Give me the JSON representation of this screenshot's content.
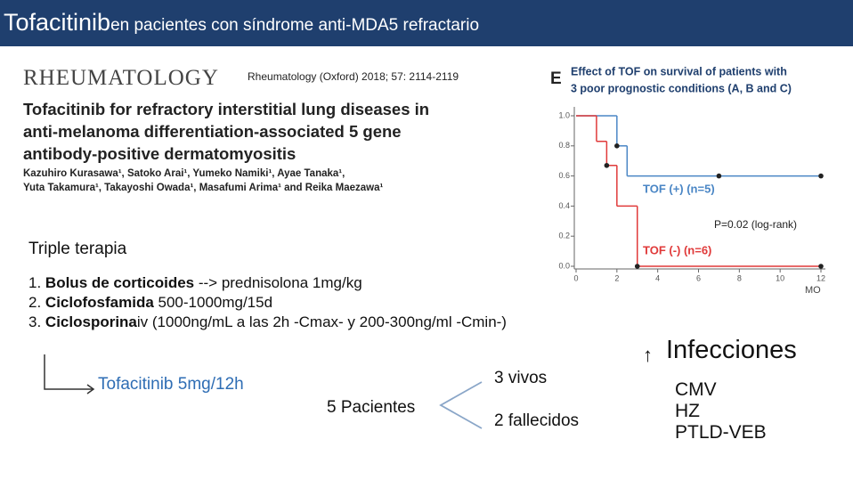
{
  "header": {
    "title_main": "Tofacitinib",
    "title_rest": "en pacientes con síndrome anti-MDA5 refractario"
  },
  "article": {
    "journal": "RHEUMATOLOGY",
    "citation": "Rheumatology (Oxford) 2018; 57: 2114-2119",
    "title_lines": [
      "Tofacitinib for refractory interstitial lung diseases in",
      "anti-melanoma differentiation-associated 5 gene",
      "antibody-positive dermatomyositis"
    ],
    "authors_lines": [
      "Kazuhiro Kurasawa¹, Satoko Arai¹, Yumeko Namiki¹, Ayae Tanaka¹,",
      "Yuta Takamura¹, Takayoshi Owada¹, Masafumi Arima¹ and Reika Maezawa¹"
    ]
  },
  "chart_data": {
    "type": "line",
    "panel_letter": "E",
    "title_lines": [
      "Effect of TOF on survival of patients with",
      "3 poor prognostic conditions (A, B and C)"
    ],
    "x_label": "MO",
    "annotation": "P=0.02 (log-rank)",
    "xlim": [
      0,
      12
    ],
    "xticks": [
      0,
      2,
      4,
      6,
      8,
      10,
      12
    ],
    "ylim": [
      0,
      1
    ],
    "yticks": [
      {
        "value": 0,
        "label": "0.0"
      },
      {
        "value": 0.2,
        "label": "0.2"
      },
      {
        "value": 0.4,
        "label": "0.4"
      },
      {
        "value": 0.6,
        "label": "0.6"
      },
      {
        "value": 0.8,
        "label": "0.8"
      },
      {
        "value": 1,
        "label": "1.0"
      }
    ],
    "series": [
      {
        "name": "TOF (+) (n=5)",
        "color": "#4a86c5",
        "x": [
          0,
          2,
          2.5,
          12
        ],
        "values": [
          1,
          0.8,
          0.6,
          0.6
        ],
        "censored": [
          [
            2,
            0.8
          ],
          [
            7,
            0.6
          ],
          [
            12,
            0.6
          ]
        ]
      },
      {
        "name": "TOF (-) (n=6)",
        "color": "#e03a3a",
        "x": [
          0,
          1,
          1.5,
          2,
          3,
          12
        ],
        "values": [
          1,
          0.83,
          0.67,
          0.4,
          0,
          0
        ],
        "censored": [
          [
            1.5,
            0.67
          ],
          [
            3,
            0
          ],
          [
            12,
            0
          ]
        ]
      }
    ]
  },
  "therapy": {
    "heading": "Triple terapia",
    "items": [
      {
        "number": "1.",
        "bold": "Bolus de corticoides",
        "rest": " --> prednisolona 1mg/kg"
      },
      {
        "number": "2.",
        "bold": "Ciclofosfamida",
        "rest": " 500-1000mg/15d"
      },
      {
        "number": "3.",
        "bold": "Ciclosporina",
        "rest": "iv (1000ng/mL a las 2h -Cmax- y 200-300ng/ml -Cmin-)"
      }
    ]
  },
  "outcome": {
    "drug": "Tofacitinib 5mg/12h",
    "patients": "5 Pacientes",
    "alive": "3 vivos",
    "dead": "2 fallecidos"
  },
  "infections": {
    "arrow": "↑",
    "title": "Infecciones",
    "items": [
      "CMV",
      "HZ",
      "PTLD-VEB"
    ]
  }
}
